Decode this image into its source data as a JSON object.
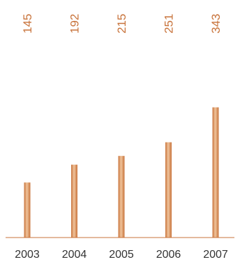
{
  "chart_data": {
    "type": "bar",
    "categories": [
      "2003",
      "2004",
      "2005",
      "2006",
      "2007"
    ],
    "values": [
      145,
      192,
      215,
      251,
      343
    ],
    "data_labels": [
      "145",
      "192",
      "215",
      "251",
      "343"
    ],
    "data_label_orientation": "vertical",
    "title": "",
    "xlabel": "",
    "ylabel": "",
    "ylim": [
      0,
      465
    ],
    "grid": false,
    "legend": "none"
  },
  "colors": {
    "bar": "#c8733b",
    "bar_highlight": "#f0c49c",
    "value_label": "#c8733b",
    "baseline": "#c8733b",
    "tick_label": "#333333"
  }
}
